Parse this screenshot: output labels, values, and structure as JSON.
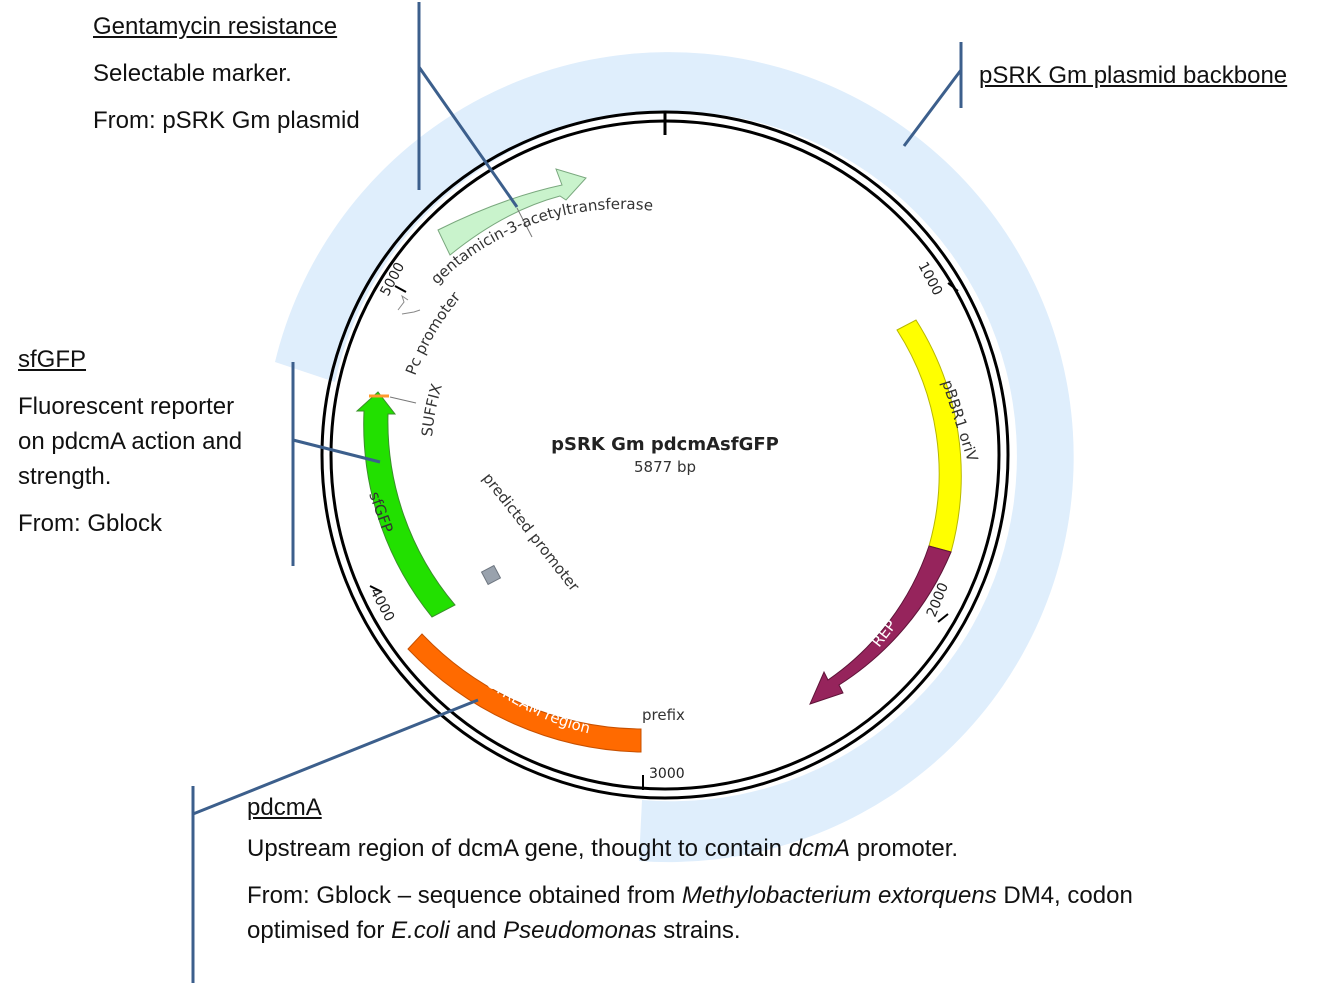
{
  "plasmid": {
    "name": "pSRK Gm pdcmAsfGFP",
    "size": "5877 bp",
    "total_bp": 5877,
    "tick_labels": [
      "1000",
      "2000",
      "3000",
      "4000",
      "5000"
    ]
  },
  "features": {
    "gentamicin": "gentamicin-3-acetyltransferase",
    "pbbr1": "pBBR1 oriV",
    "rep": "REP",
    "dcma": "dcmA UPSTREAM region",
    "sfgfp": "sfGFP",
    "predicted_promoter": "predicted promoter",
    "prefix": "prefix",
    "suffix": "SUFFIX",
    "pc_promoter": "Pc promoter"
  },
  "colors": {
    "backbone": "#dfeefc",
    "gentamicin": "#c9f3cc",
    "pbbr1": "#ffff00",
    "rep": "#96245c",
    "dcma": "#ff6a00",
    "sfgfp": "#22e000",
    "callout": "#3c5f8c",
    "promoter_box": "#99a2ad"
  },
  "annotations": {
    "gentamycin": {
      "heading": "Gentamycin resistance",
      "line1": "Selectable marker.",
      "line2": "From: pSRK Gm plasmid"
    },
    "backbone": {
      "heading": "pSRK Gm plasmid backbone"
    },
    "sfgfp": {
      "heading": "sfGFP",
      "line1": "Fluorescent reporter",
      "line2": "on pdcmA action and",
      "line3": "strength.",
      "line4": "From: Gblock"
    },
    "pdcma": {
      "heading": "pdcmA",
      "line1_a": "Upstream region of dcmA gene, thought to contain ",
      "line1_b": "dcmA",
      "line1_c": " promoter.",
      "line2_a": "From: Gblock – sequence obtained from ",
      "line2_b": "Methylobacterium extorquens",
      "line2_c": " DM4, codon",
      "line3_a": "optimised for ",
      "line3_b": "E.coli",
      "line3_c": " and ",
      "line3_d": "Pseudomonas",
      "line3_e": " strains."
    }
  }
}
